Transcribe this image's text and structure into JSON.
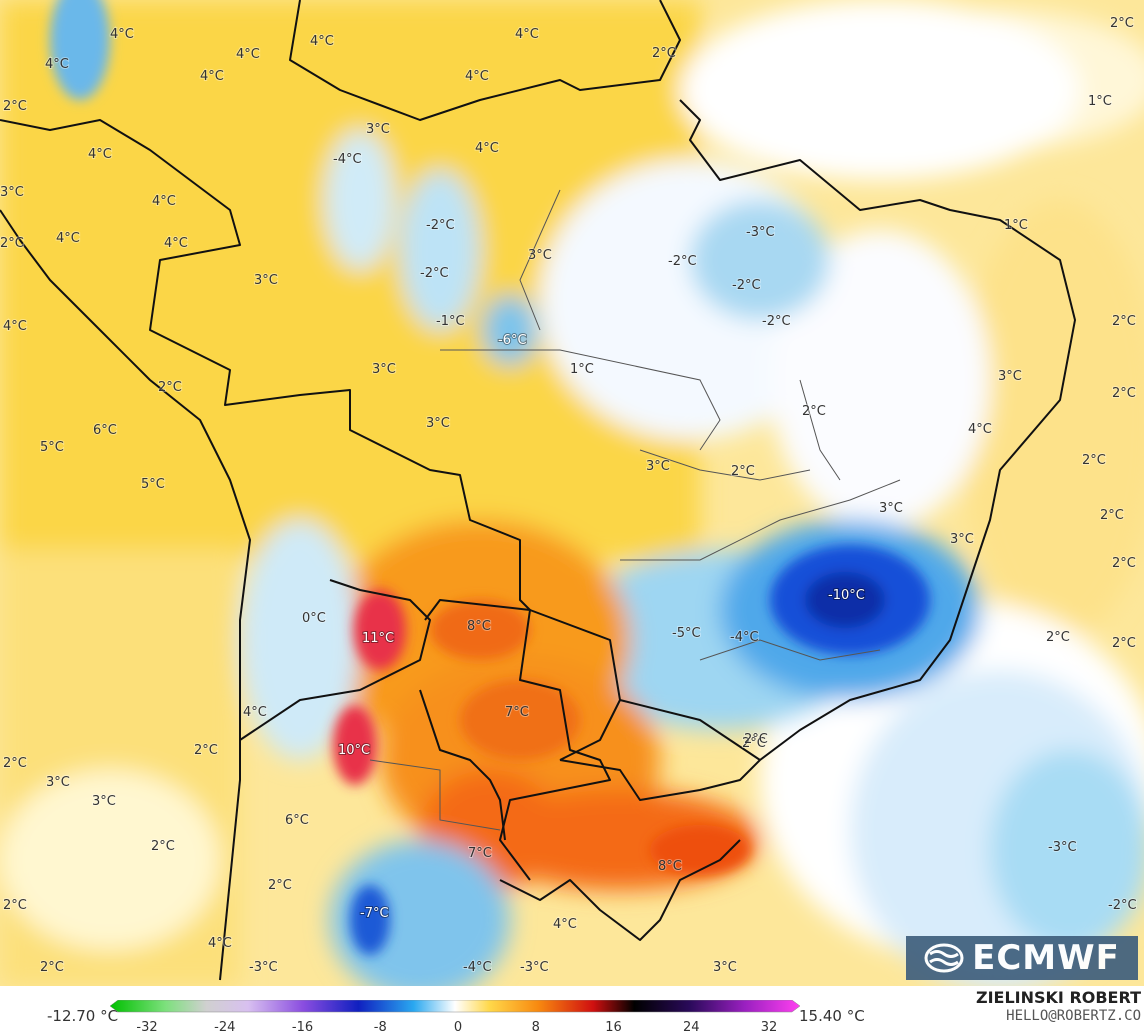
{
  "map": {
    "labels": [
      "4°C",
      "4°C",
      "4°C",
      "4°C",
      "2°C",
      "1°C",
      "2°C",
      "2°C",
      "4°C",
      "3°C",
      "4°C",
      "4°C",
      "4°C",
      "-4°C",
      "4°C",
      "4°C",
      "-2°C",
      "-3°C",
      "1°C",
      "3°C",
      "3°C",
      "-2°C",
      "-2°C",
      "-2°C",
      "-1°C",
      "-2°C",
      "-6°C",
      "2°C",
      "4°C",
      "4°C",
      "3°C",
      "1°C",
      "2°C",
      "2°C",
      "2°C",
      "3°C",
      "6°C",
      "3°C",
      "2°C",
      "4°C",
      "5°C",
      "4°C",
      "5°C",
      "2°C",
      "3°C",
      "3°C",
      "3°C",
      "2°C",
      "2°C",
      "0°C",
      "-10°C",
      "3°C",
      "2°C",
      "11°C",
      "8°C",
      "-5°C",
      "-4°C",
      "2°C",
      "2°C",
      "7°C",
      "4°C",
      "2°C",
      "10°C",
      "2°C",
      "2°C",
      "3°C",
      "3°C",
      "6°C",
      "2°C",
      "7°C",
      "8°C",
      "-3°C",
      "2°C",
      "-2°C",
      "2°C",
      "-7°C",
      "4°C",
      "4°C",
      "-3°C",
      "-4°C",
      "-3°C",
      "3°C",
      "2°C",
      "2°C"
    ]
  },
  "colors": {
    "cold_extreme": "#00c000",
    "cold": "#0000a0",
    "neutral": "#ffffff",
    "warm": "#ffd000",
    "hot": "#e02060",
    "hot_extreme": "#ff00ff"
  },
  "legend": {
    "min": "-12.70 °C",
    "max": "15.40 °C",
    "ticks": [
      "-32",
      "-24",
      "-16",
      "-8",
      "0",
      "8",
      "16",
      "24",
      "32"
    ]
  },
  "branding": {
    "logo_text": "ECMWF",
    "author": "ZIELINSKI ROBERT",
    "contact": "HELLO@ROBERTZ.CO"
  }
}
